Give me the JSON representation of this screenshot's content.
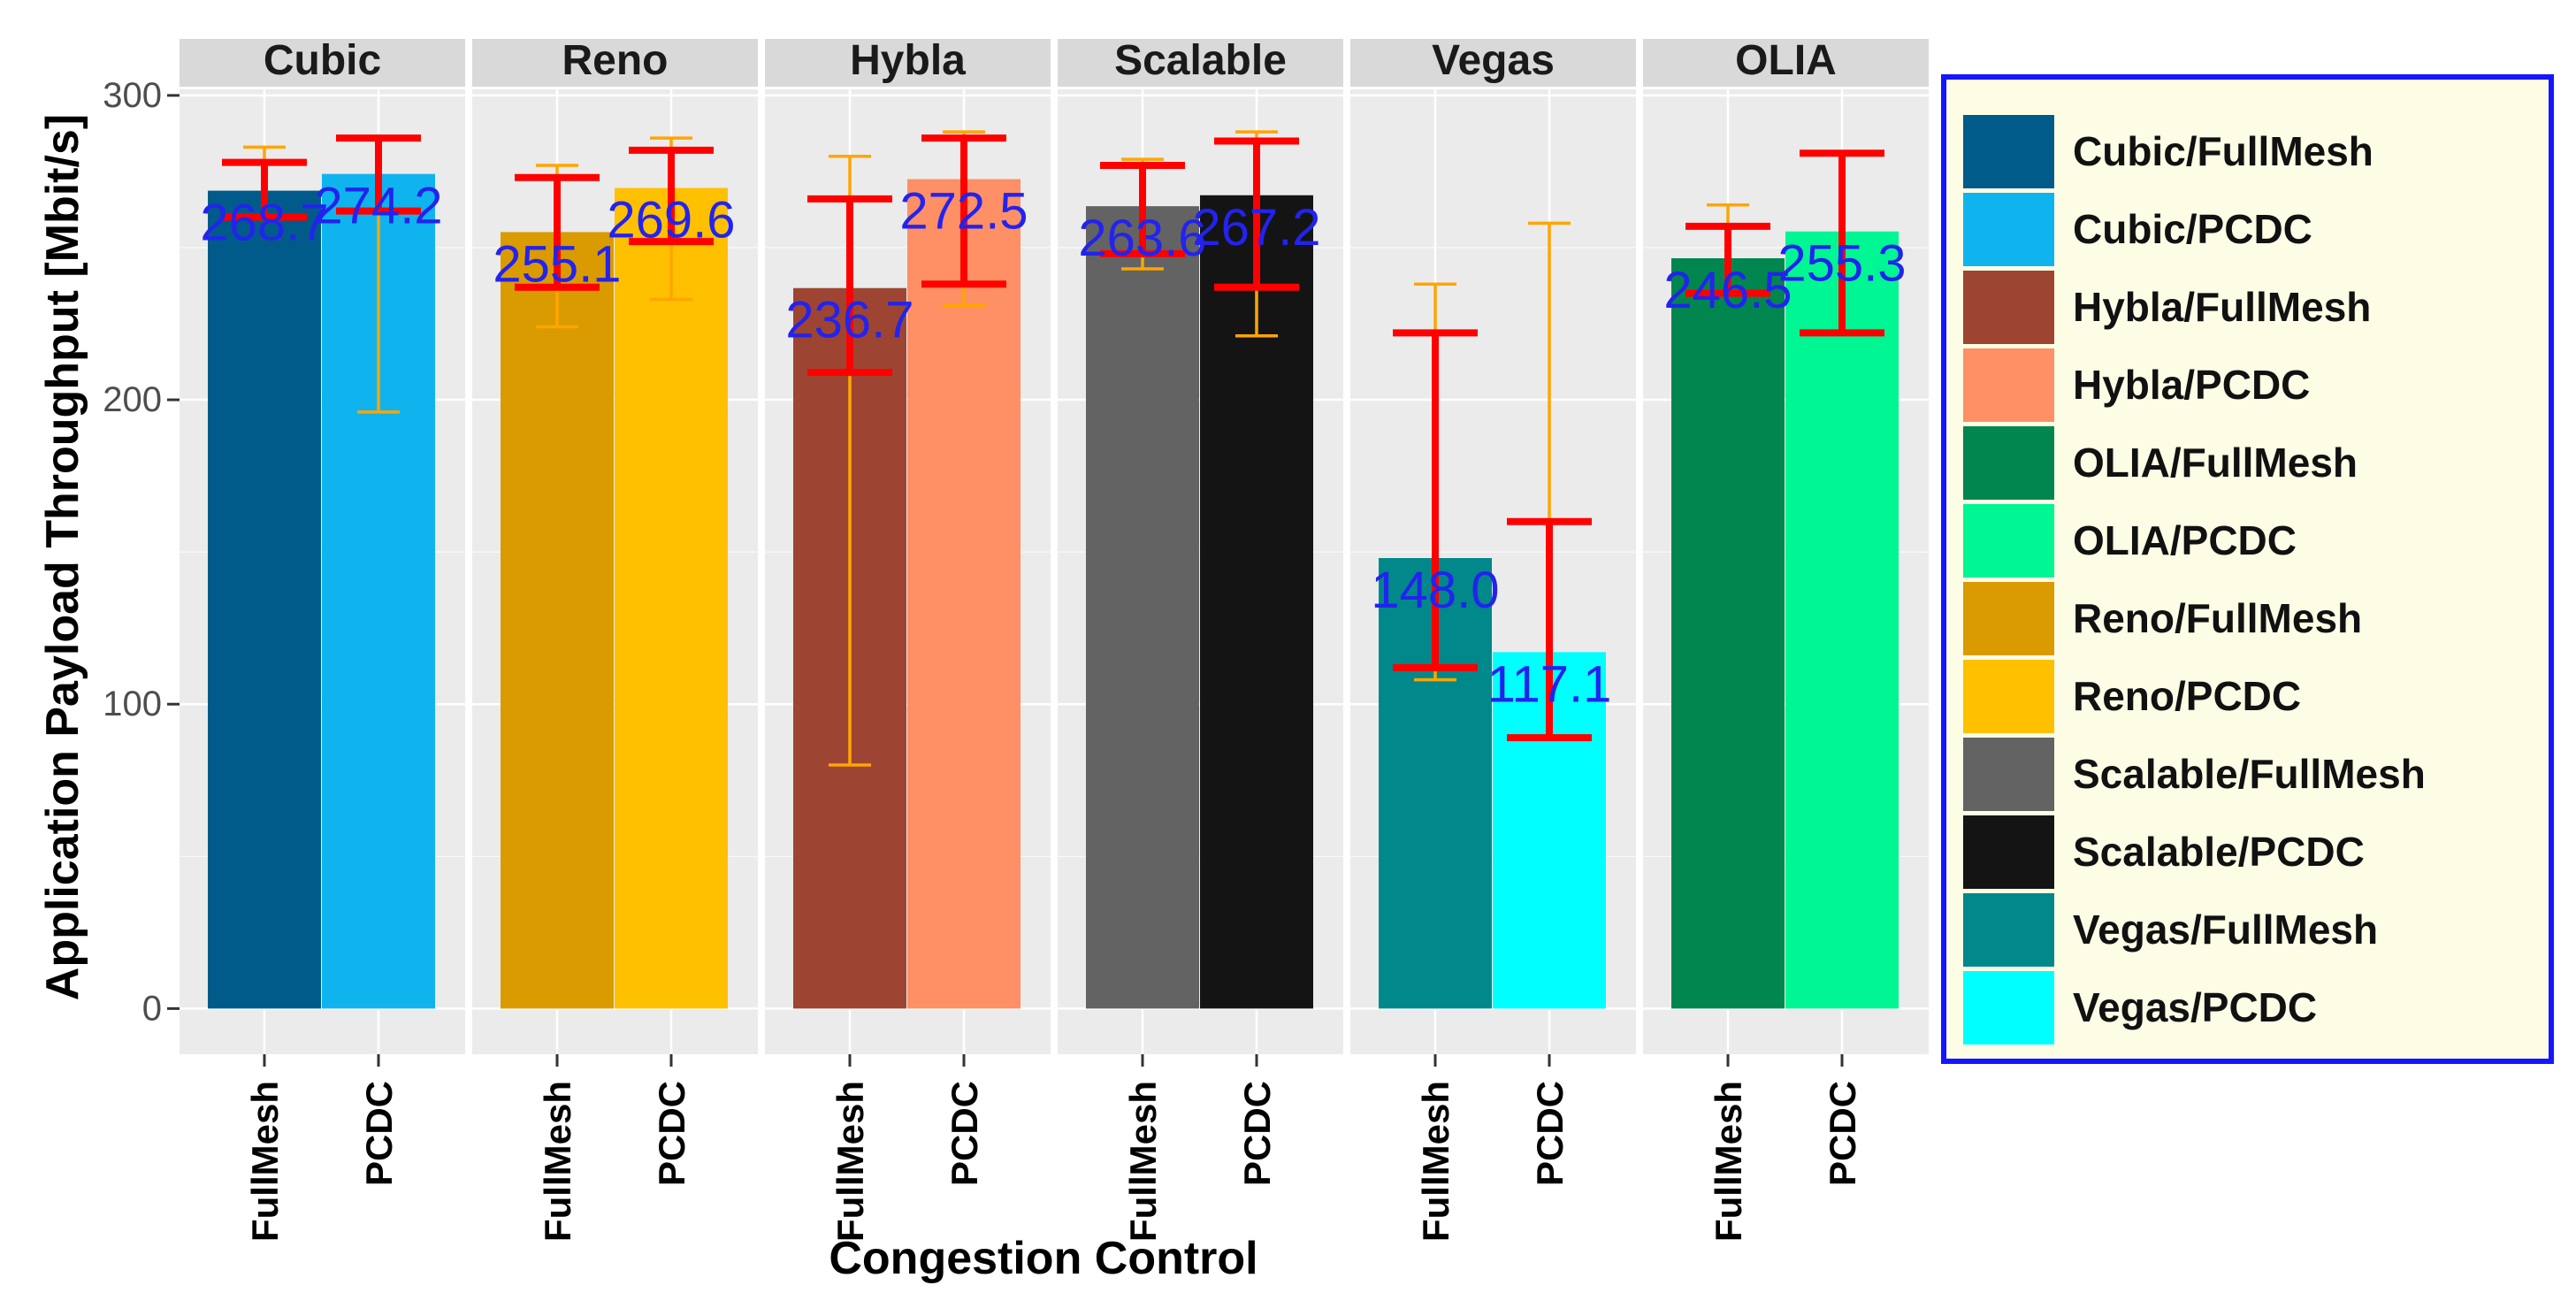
{
  "chart_data": {
    "type": "bar",
    "facets": [
      "Cubic",
      "Reno",
      "Hybla",
      "Scalable",
      "Vegas",
      "OLIA"
    ],
    "categories": [
      "FullMesh",
      "PCDC"
    ],
    "xlabel": "Congestion Control",
    "ylabel": "Application Payload Throughput [Mbit/s]",
    "ylim": [
      -15,
      302
    ],
    "yticks": [
      0,
      100,
      200,
      300
    ],
    "grid": true,
    "legend_position": "right",
    "bars": [
      {
        "facet": "Cubic",
        "category": "FullMesh",
        "value": 268.7,
        "label": "268.7",
        "legend": "Cubic/FullMesh",
        "color": "#005b8a",
        "err_outer": [
          260,
          283
        ],
        "err_inner": [
          260,
          278
        ]
      },
      {
        "facet": "Cubic",
        "category": "PCDC",
        "value": 274.2,
        "label": "274.2",
        "legend": "Cubic/PCDC",
        "color": "#0fb4ef",
        "err_outer": [
          196,
          286
        ],
        "err_inner": [
          262,
          286
        ]
      },
      {
        "facet": "Reno",
        "category": "FullMesh",
        "value": 255.1,
        "label": "255.1",
        "legend": "Reno/FullMesh",
        "color": "#d99b00",
        "err_outer": [
          224,
          277
        ],
        "err_inner": [
          237,
          273
        ]
      },
      {
        "facet": "Reno",
        "category": "PCDC",
        "value": 269.6,
        "label": "269.6",
        "legend": "Reno/PCDC",
        "color": "#ffc000",
        "err_outer": [
          233,
          286
        ],
        "err_inner": [
          252,
          282
        ]
      },
      {
        "facet": "Hybla",
        "category": "FullMesh",
        "value": 236.7,
        "label": "236.7",
        "legend": "Hybla/FullMesh",
        "color": "#9d4532",
        "err_outer": [
          80,
          280
        ],
        "err_inner": [
          209,
          266
        ]
      },
      {
        "facet": "Hybla",
        "category": "PCDC",
        "value": 272.5,
        "label": "272.5",
        "legend": "Hybla/PCDC",
        "color": "#ff8f65",
        "err_outer": [
          231,
          288
        ],
        "err_inner": [
          238,
          286
        ]
      },
      {
        "facet": "Scalable",
        "category": "FullMesh",
        "value": 263.6,
        "label": "263.6",
        "legend": "Scalable/FullMesh",
        "color": "#636363",
        "err_outer": [
          243,
          279
        ],
        "err_inner": [
          248,
          277
        ]
      },
      {
        "facet": "Scalable",
        "category": "PCDC",
        "value": 267.2,
        "label": "267.2",
        "legend": "Scalable/PCDC",
        "color": "#141414",
        "err_outer": [
          221,
          288
        ],
        "err_inner": [
          237,
          285
        ]
      },
      {
        "facet": "Vegas",
        "category": "FullMesh",
        "value": 148.0,
        "label": "148.0",
        "legend": "Vegas/FullMesh",
        "color": "#00888a",
        "err_outer": [
          108,
          238
        ],
        "err_inner": [
          112,
          222
        ]
      },
      {
        "facet": "Vegas",
        "category": "PCDC",
        "value": 117.1,
        "label": "117.1",
        "legend": "Vegas/PCDC",
        "color": "#00ffff",
        "err_outer": [
          89,
          258
        ],
        "err_inner": [
          89,
          160
        ]
      },
      {
        "facet": "OLIA",
        "category": "FullMesh",
        "value": 246.5,
        "label": "246.5",
        "legend": "OLIA/FullMesh",
        "color": "#00864e",
        "err_outer": [
          235,
          264
        ],
        "err_inner": [
          235,
          257
        ]
      },
      {
        "facet": "OLIA",
        "category": "PCDC",
        "value": 255.3,
        "label": "255.3",
        "legend": "OLIA/PCDC",
        "color": "#00f593",
        "err_outer": [
          222,
          281
        ],
        "err_inner": [
          222,
          281
        ]
      }
    ],
    "legend_order": [
      "Cubic/FullMesh",
      "Cubic/PCDC",
      "Hybla/FullMesh",
      "Hybla/PCDC",
      "OLIA/FullMesh",
      "OLIA/PCDC",
      "Reno/FullMesh",
      "Reno/PCDC",
      "Scalable/FullMesh",
      "Scalable/PCDC",
      "Vegas/FullMesh",
      "Vegas/PCDC"
    ],
    "colors": {
      "panel_bg": "#ebebeb",
      "strip_bg": "#d9d9d9",
      "grid": "#ffffff",
      "err_outer": "#ffa500",
      "err_inner": "#ff0000",
      "value_text": "#2323ee",
      "legend_border": "#1515ff",
      "legend_bg": "#fdfde6"
    }
  }
}
